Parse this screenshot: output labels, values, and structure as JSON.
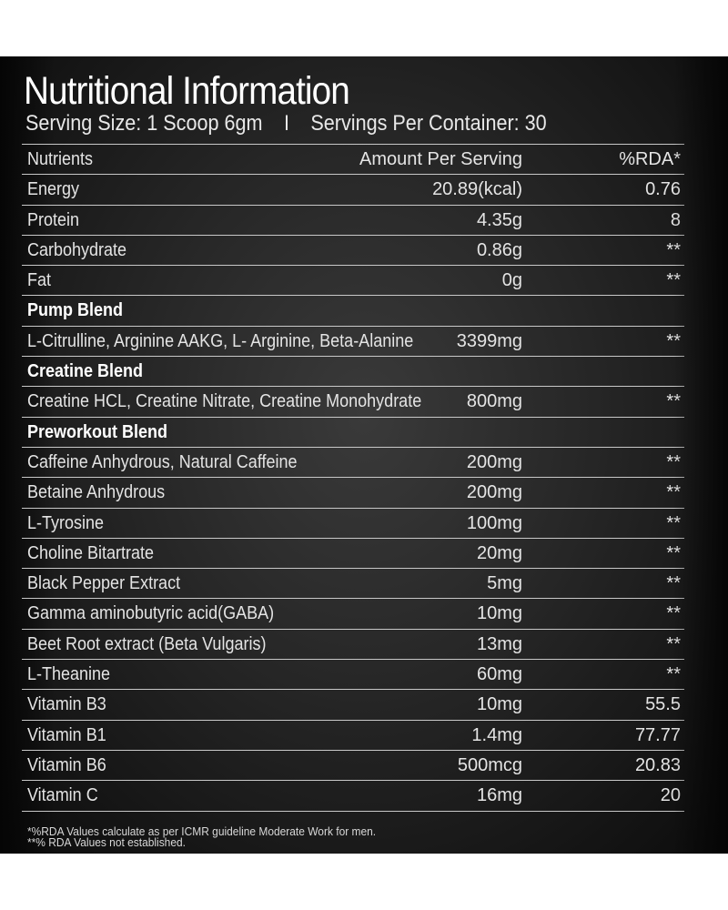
{
  "title": "Nutritional Information",
  "serving": {
    "size": "Serving Size: 1 Scoop 6gm",
    "separator": "I",
    "per_container": "Servings Per Container: 30"
  },
  "header": {
    "nutrients": "Nutrients",
    "amount": "Amount Per Serving",
    "rda": "%RDA*"
  },
  "rows": [
    {
      "name": "Energy",
      "amount": "20.89(kcal)",
      "rda": "0.76"
    },
    {
      "name": "Protein",
      "amount": "4.35g",
      "rda": "8"
    },
    {
      "name": "Carbohydrate",
      "amount": "0.86g",
      "rda": "**"
    },
    {
      "name": "Fat",
      "amount": "0g",
      "rda": "**"
    },
    {
      "name": "Pump Blend",
      "amount": "",
      "rda": ""
    },
    {
      "name": "L-Citrulline, Arginine AAKG, L- Arginine, Beta-Alanine",
      "amount": "3399mg",
      "rda": "**"
    },
    {
      "name": "Creatine Blend",
      "amount": "",
      "rda": ""
    },
    {
      "name": "Creatine HCL, Creatine Nitrate, Creatine Monohydrate",
      "amount": "800mg",
      "rda": "**"
    },
    {
      "name": "Preworkout Blend",
      "amount": "",
      "rda": ""
    },
    {
      "name": "Caffeine Anhydrous, Natural Caffeine",
      "amount": "200mg",
      "rda": "**"
    },
    {
      "name": "Betaine Anhydrous",
      "amount": "200mg",
      "rda": "**"
    },
    {
      "name": "L-Tyrosine",
      "amount": "100mg",
      "rda": "**"
    },
    {
      "name": "Choline Bitartrate",
      "amount": "20mg",
      "rda": "**"
    },
    {
      "name": "Black Pepper Extract",
      "amount": "5mg",
      "rda": "**"
    },
    {
      "name": "Gamma aminobutyric acid(GABA)",
      "amount": "10mg",
      "rda": "**"
    },
    {
      "name": "Beet Root extract (Beta Vulgaris)",
      "amount": "13mg",
      "rda": "**"
    },
    {
      "name": "L-Theanine",
      "amount": "60mg",
      "rda": "**"
    },
    {
      "name": "Vitamin B3",
      "amount": "10mg",
      "rda": "55.5"
    },
    {
      "name": "Vitamin B1",
      "amount": "1.4mg",
      "rda": "77.77"
    },
    {
      "name": "Vitamin B6",
      "amount": "500mcg",
      "rda": "20.83"
    },
    {
      "name": "Vitamin C",
      "amount": "16mg",
      "rda": "20"
    }
  ],
  "footnotes": {
    "line1": "*%RDA Values calculate as per ICMR guideline Moderate Work for men.",
    "line2": "**% RDA Values not established."
  }
}
